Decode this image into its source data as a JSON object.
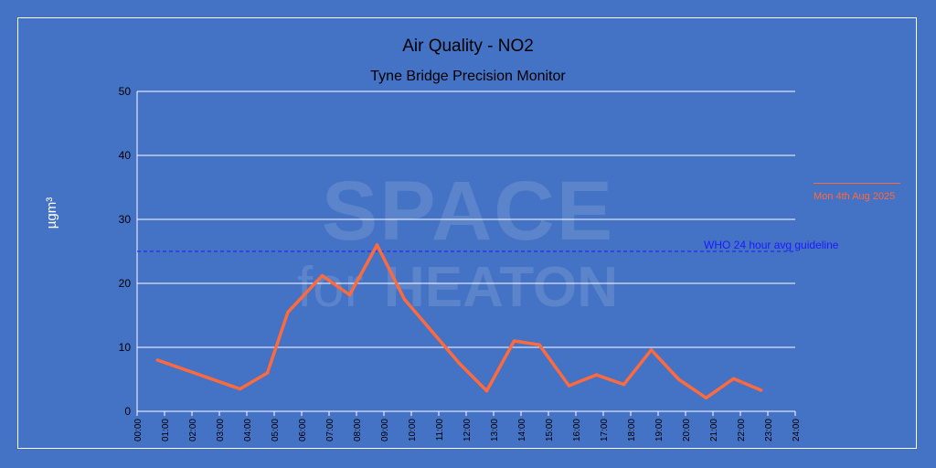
{
  "chart_data": {
    "type": "line",
    "title": "Air Quality - NO2",
    "subtitle": "Tyne Bridge Precision Monitor",
    "ylabel": "µgm³",
    "xlabel": "",
    "ylim": [
      0,
      50
    ],
    "yticks": [
      0,
      10,
      20,
      30,
      40,
      50
    ],
    "xlim": [
      0,
      24
    ],
    "xticks": [
      "00:00",
      "01:00",
      "02:00",
      "03:00",
      "04:00",
      "05:00",
      "06:00",
      "07:00",
      "08:00",
      "09:00",
      "10:00",
      "11:00",
      "12:00",
      "13:00",
      "14:00",
      "15:00",
      "16:00",
      "17:00",
      "18:00",
      "19:00",
      "20:00",
      "21:00",
      "22:00",
      "23:00",
      "24:00"
    ],
    "grid": true,
    "legend_position": "right",
    "series": [
      {
        "name": "Mon 4th Aug 2025",
        "color": "#ff6a3d",
        "x": [
          "00:45",
          "03:45",
          "04:45",
          "05:30",
          "06:45",
          "07:45",
          "08:45",
          "09:45",
          "10:45",
          "11:45",
          "12:45",
          "13:45",
          "14:40",
          "15:45",
          "16:45",
          "17:45",
          "18:45",
          "19:45",
          "20:45",
          "21:45",
          "22:45"
        ],
        "y": [
          8,
          3.5,
          6,
          15.5,
          21.2,
          18.2,
          26,
          17.5,
          12.5,
          7.5,
          3.2,
          11,
          10.4,
          4,
          5.7,
          4.2,
          9.6,
          5,
          2.1,
          5.1,
          3.3
        ]
      }
    ],
    "reference_line": {
      "label": "WHO 24 hour avg guideline",
      "value": 25,
      "color": "#1a1aff"
    }
  },
  "watermark": {
    "line1": "SPACE",
    "line2_a": "for",
    "line2_b": "HEATON"
  }
}
